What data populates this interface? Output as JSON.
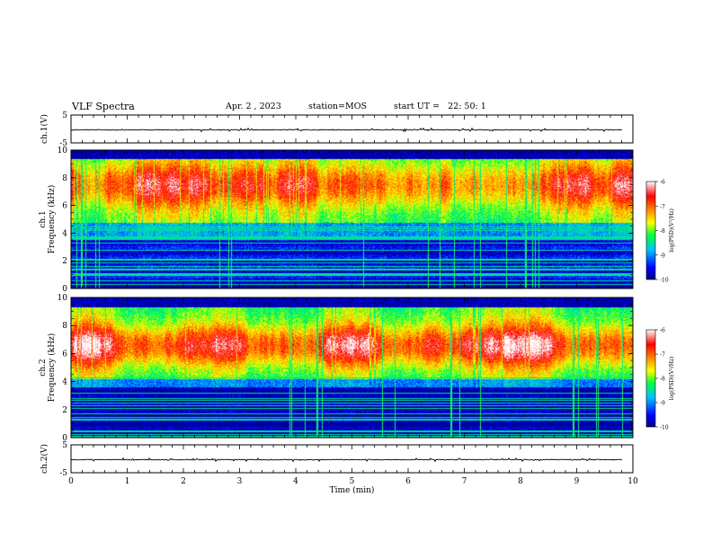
{
  "header": {
    "title": "VLF Spectra",
    "date": "Apr. 2 , 2023",
    "station": "station=MOS",
    "start_ut": "start UT =   22: 50: 1"
  },
  "chart_data": [
    {
      "id": "ch1-waveform",
      "type": "line",
      "ylabel": "ch.1(V)",
      "ylim": [
        -5,
        5
      ],
      "yticks": [
        "5",
        "-5"
      ],
      "xlim": [
        0,
        10
      ]
    },
    {
      "id": "ch1-spectrogram",
      "type": "heatmap",
      "ylabel": "ch.1\nFrequency (kHz)",
      "ylim": [
        0,
        10
      ],
      "yticks": [
        "0",
        "2",
        "4",
        "6",
        "8",
        "10"
      ],
      "xlim": [
        0,
        10
      ],
      "colorbar": {
        "label": "log(PSD)(V²/Hz)",
        "range": [
          -10,
          -6
        ],
        "ticks": [
          "-6",
          "-7",
          "-8",
          "-9",
          "-10"
        ]
      }
    },
    {
      "id": "ch2-spectrogram",
      "type": "heatmap",
      "ylabel": "ch.2\nFrequency (kHz)",
      "ylim": [
        0,
        10
      ],
      "yticks": [
        "0",
        "2",
        "4",
        "6",
        "8",
        "10"
      ],
      "xlim": [
        0,
        10
      ],
      "colorbar": {
        "label": "log(PSD)(V²/Hz)",
        "range": [
          -10,
          -6
        ],
        "ticks": [
          "-6",
          "-7",
          "-8",
          "-9",
          "-10"
        ]
      }
    },
    {
      "id": "ch2-waveform",
      "type": "line",
      "ylabel": "ch.2(V)",
      "ylim": [
        -5,
        5
      ],
      "yticks": [
        "5",
        "-5"
      ],
      "xlim": [
        0,
        10
      ]
    }
  ],
  "xaxis": {
    "label": "Time (min)",
    "ticks": [
      "0",
      "1",
      "2",
      "3",
      "4",
      "5",
      "6",
      "7",
      "8",
      "9",
      "10"
    ]
  },
  "colors": {
    "scale": [
      "#000080",
      "#0000ff",
      "#00c0ff",
      "#00ff40",
      "#ffff00",
      "#ff8000",
      "#ff0000",
      "#ffffff"
    ]
  }
}
